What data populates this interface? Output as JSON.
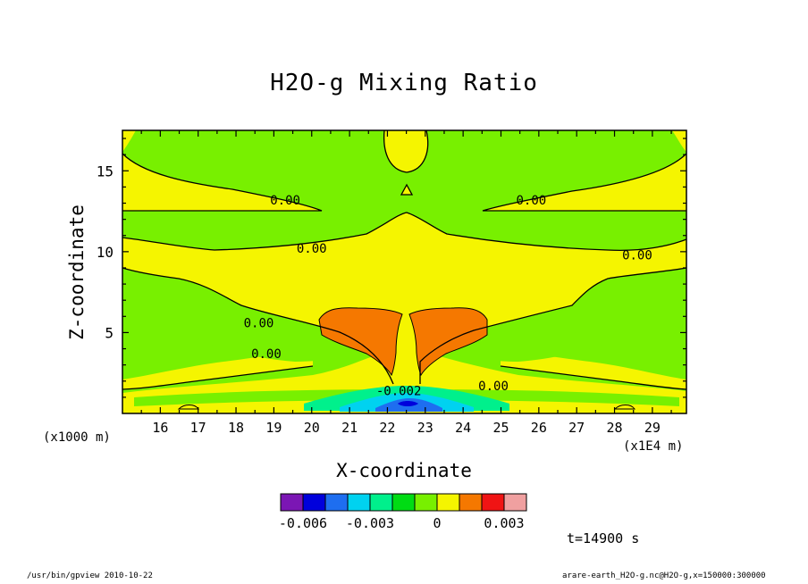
{
  "chart_data": {
    "type": "contour",
    "title": "H2O-g Mixing Ratio",
    "xlabel": "X-coordinate",
    "ylabel": "Z-coordinate",
    "x_multiplier_label": "(x1E4 m)",
    "y_multiplier_label": "(x1000 m)",
    "xlim": [
      15.0,
      29.9
    ],
    "ylim": [
      0.0,
      17.5
    ],
    "x_ticks": [
      16,
      17,
      18,
      19,
      20,
      21,
      22,
      23,
      24,
      25,
      26,
      27,
      28,
      29
    ],
    "y_ticks": [
      5,
      10,
      15
    ],
    "contour_labels": [
      {
        "text": "0.00",
        "x": 19.3,
        "y": 13.2
      },
      {
        "text": "0.00",
        "x": 25.8,
        "y": 13.2
      },
      {
        "text": "0.00",
        "x": 20.0,
        "y": 10.2
      },
      {
        "text": "0.00",
        "x": 28.6,
        "y": 9.8
      },
      {
        "text": "0.00",
        "x": 18.6,
        "y": 5.6
      },
      {
        "text": "0.00",
        "x": 18.8,
        "y": 3.7
      },
      {
        "text": "0.00",
        "x": 24.8,
        "y": 1.7
      },
      {
        "text": "-0.002",
        "x": 22.3,
        "y": 1.4
      }
    ],
    "colorbar": {
      "levels": [
        -0.007,
        -0.006,
        -0.005,
        -0.004,
        -0.003,
        -0.002,
        -0.001,
        0,
        0.001,
        0.002,
        0.003,
        0.004
      ],
      "colors": [
        "#7b16b4",
        "#0000dc",
        "#1e6ef0",
        "#00d2f0",
        "#00f08c",
        "#00dc14",
        "#78f000",
        "#f5f500",
        "#f57800",
        "#f01414",
        "#f0a0a0"
      ],
      "tick_labels": [
        "-0.006",
        "-0.003",
        "0",
        "0.003"
      ]
    },
    "time_label": "t=14900 s"
  },
  "footer": {
    "left": "/usr/bin/gpview   2010-10-22",
    "right": "arare-earth_H2O-g.nc@H2O-g,x=150000:300000"
  }
}
